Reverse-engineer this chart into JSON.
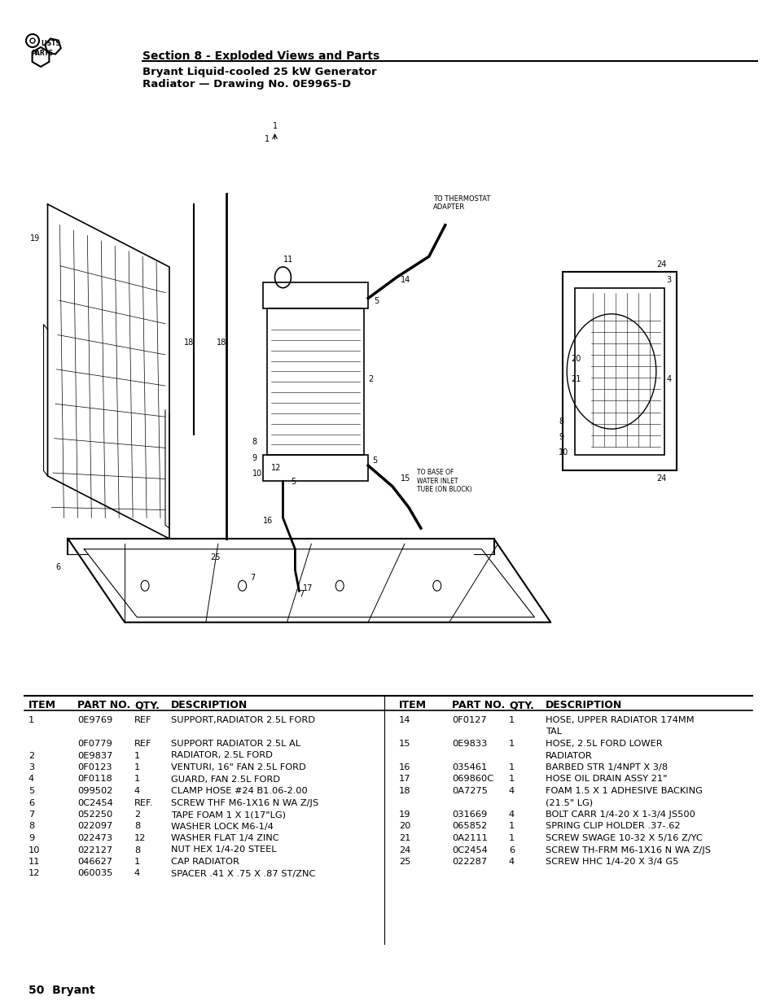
{
  "section_title": "Section 8 - Exploded Views and Parts",
  "subtitle1": "Bryant Liquid-cooled 25 kW Generator",
  "subtitle2": "Radiator — Drawing No. 0E9965-D",
  "page_label": "50  Bryant",
  "table_headers": [
    "ITEM",
    "PART NO.",
    "QTY.",
    "DESCRIPTION"
  ],
  "left_table": [
    [
      "1",
      "0E9769",
      "REF",
      "SUPPORT,RADIATOR 2.5L FORD"
    ],
    [
      "",
      "0F0779",
      "REF",
      "SUPPORT RADIATOR 2.5L AL"
    ],
    [
      "2",
      "0E9837",
      "1",
      "RADIATOR, 2.5L FORD"
    ],
    [
      "3",
      "0F0123",
      "1",
      "VENTURI, 16\" FAN 2.5L FORD"
    ],
    [
      "4",
      "0F0118",
      "1",
      "GUARD, FAN 2.5L FORD"
    ],
    [
      "5",
      "099502",
      "4",
      "CLAMP HOSE #24 B1.06-2.00"
    ],
    [
      "6",
      "0C2454",
      "REF.",
      "SCREW THF M6-1X16 N WA Z/JS"
    ],
    [
      "7",
      "052250",
      "2",
      "TAPE FOAM 1 X 1(17\"LG)"
    ],
    [
      "8",
      "022097",
      "8",
      "WASHER LOCK M6-1/4"
    ],
    [
      "9",
      "022473",
      "12",
      "WASHER FLAT 1/4 ZINC"
    ],
    [
      "10",
      "022127",
      "8",
      "NUT HEX 1/4-20 STEEL"
    ],
    [
      "11",
      "046627",
      "1",
      "CAP RADIATOR"
    ],
    [
      "12",
      "060035",
      "4",
      "SPACER .41 X .75 X .87 ST/ZNC"
    ]
  ],
  "right_table": [
    [
      "14",
      "0F0127",
      "1",
      "HOSE, UPPER RADIATOR 174MM TAL"
    ],
    [
      "15",
      "0E9833",
      "1",
      "HOSE, 2.5L FORD LOWER RADIATOR"
    ],
    [
      "16",
      "035461",
      "1",
      "BARBED STR 1/4NPT X 3/8"
    ],
    [
      "17",
      "069860C",
      "1",
      "HOSE OIL DRAIN ASSY 21\""
    ],
    [
      "18",
      "0A7275",
      "4",
      "FOAM 1.5 X 1 ADHESIVE BACKING (21.5\" LG)"
    ],
    [
      "19",
      "031669",
      "4",
      "BOLT CARR 1/4-20 X 1-3/4 JS500"
    ],
    [
      "20",
      "065852",
      "1",
      "SPRING CLIP HOLDER .37-.62"
    ],
    [
      "21",
      "0A2111",
      "1",
      "SCREW SWAGE 10-32 X 5/16 Z/YC"
    ],
    [
      "24",
      "0C2454",
      "6",
      "SCREW TH-FRM M6-1X16 N WA Z/JS"
    ],
    [
      "25",
      "022287",
      "4",
      "SCREW HHC 1/4-20 X 3/4 G5"
    ]
  ],
  "bg_color": "#ffffff",
  "text_color": "#000000",
  "header_color": "#000000"
}
